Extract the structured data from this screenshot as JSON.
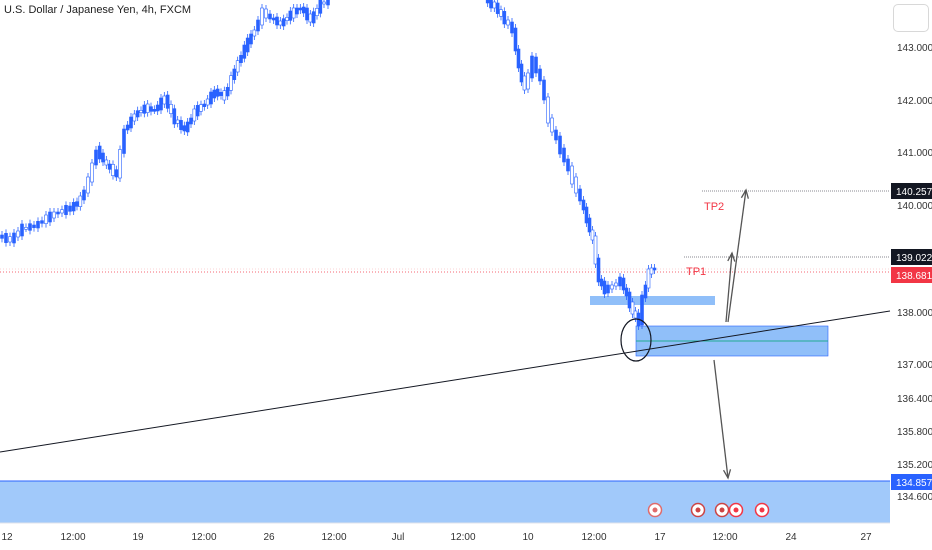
{
  "header": {
    "title": "U.S. Dollar / Japanese Yen, 4h, FXCM"
  },
  "chart_data": {
    "type": "candlestick",
    "symbol": "U.S. Dollar / Japanese Yen",
    "timeframe": "4h",
    "source": "FXCM",
    "y_ticks": [
      "143.000",
      "142.000",
      "141.000",
      "140.000",
      "138.000",
      "137.000",
      "136.400",
      "135.800",
      "135.200",
      "134.600"
    ],
    "x_ticks": [
      "12",
      "12:00",
      "19",
      "12:00",
      "26",
      "12:00",
      "Jul",
      "12:00",
      "10",
      "12:00",
      "17",
      "12:00",
      "24",
      "27"
    ],
    "price_badges": [
      {
        "label": "140.257",
        "value": 140.257,
        "bg": "#131722",
        "fg": "#ffffff"
      },
      {
        "label": "139.022",
        "value": 139.022,
        "bg": "#131722",
        "fg": "#ffffff"
      },
      {
        "label": "138.681",
        "value": 138.681,
        "bg": "#f23645",
        "fg": "#ffffff"
      },
      {
        "label": "134.857",
        "value": 134.857,
        "bg": "#2962ff",
        "fg": "#ffffff"
      }
    ],
    "annotations": [
      {
        "text": "TP2",
        "color": "#f23645"
      },
      {
        "text": "TP1",
        "color": "#f23645"
      }
    ],
    "colors": {
      "up": "#2962ff",
      "down": "#2962ff",
      "line": "#131722",
      "zone": "#90bff9",
      "current_price": "#f23645",
      "midline": "#22ab94"
    },
    "grid": false
  }
}
